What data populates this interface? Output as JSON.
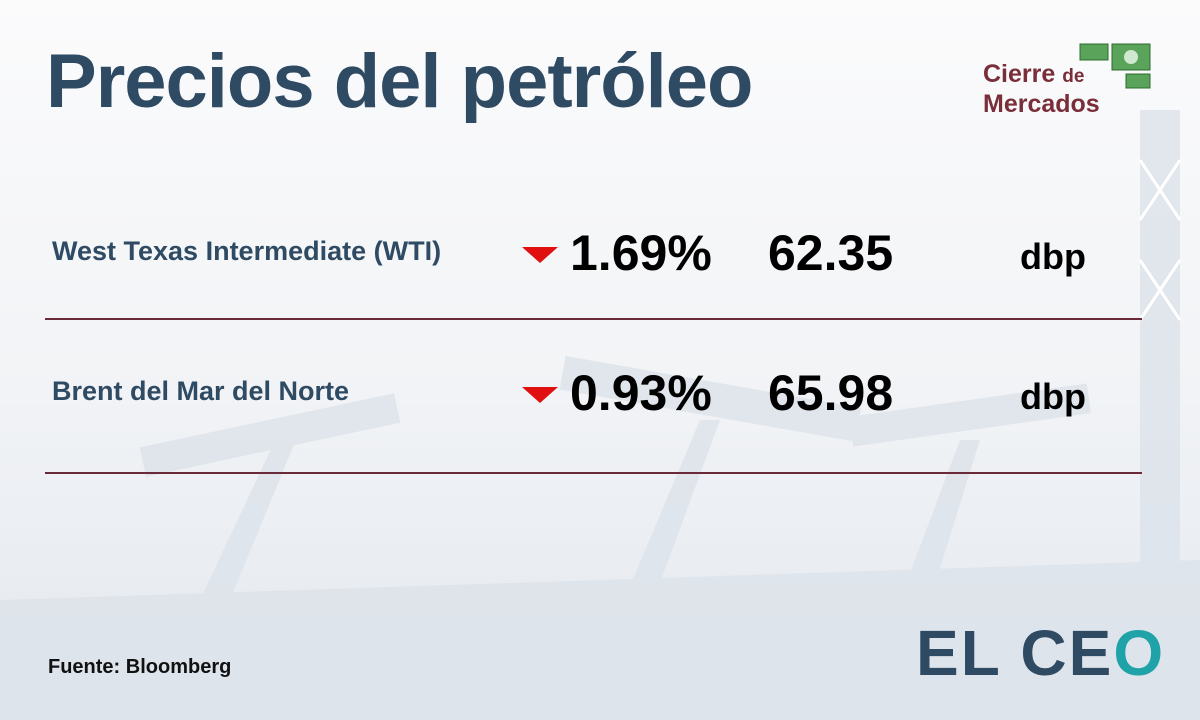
{
  "header": {
    "title": "Precios del petróleo",
    "logo": [
      "Cierre",
      "de",
      "Mercados"
    ]
  },
  "table": {
    "rows": [
      [
        "West Texas Intermediate (WTI)",
        "1.69%",
        "62.35",
        "dbp"
      ],
      [
        "Brent del Mar del Norte",
        "0.93%",
        "65.98",
        "dbp"
      ]
    ]
  },
  "footer": {
    "source": "Fuente: Bloomberg",
    "brand": {
      "main": "EL CE",
      "accent": "O"
    }
  }
}
